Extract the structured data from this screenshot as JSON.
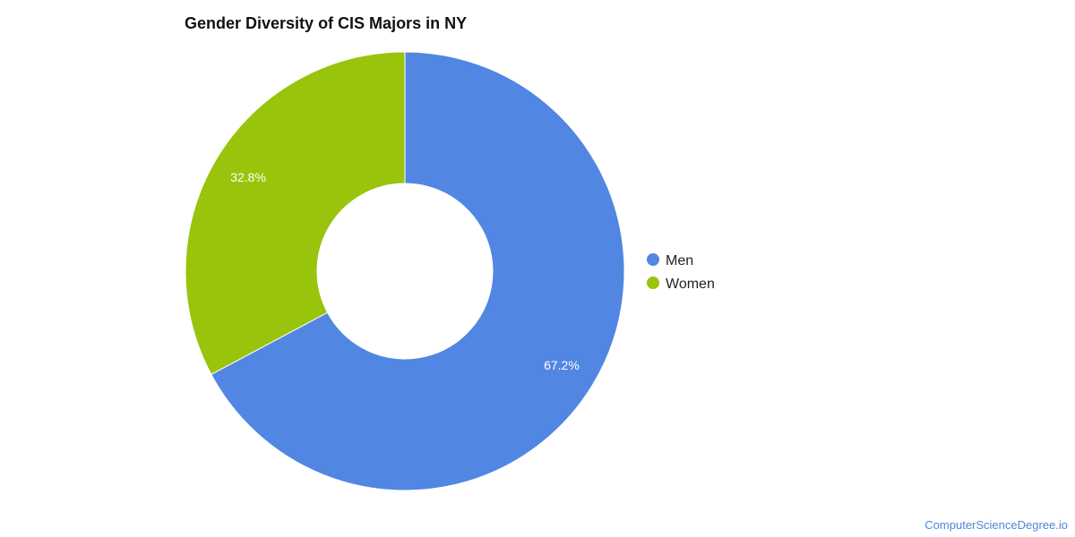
{
  "chart_data": {
    "type": "pie",
    "title": "Gender Diversity of CIS Majors in NY",
    "categories": [
      "Men",
      "Women"
    ],
    "values": [
      67.2,
      32.8
    ],
    "value_labels": [
      "67.2%",
      "32.8%"
    ],
    "colors": [
      "#5286e3",
      "#98c40b"
    ],
    "donut": true,
    "legend_position": "right"
  },
  "watermark": "ComputerScienceDegree.io"
}
